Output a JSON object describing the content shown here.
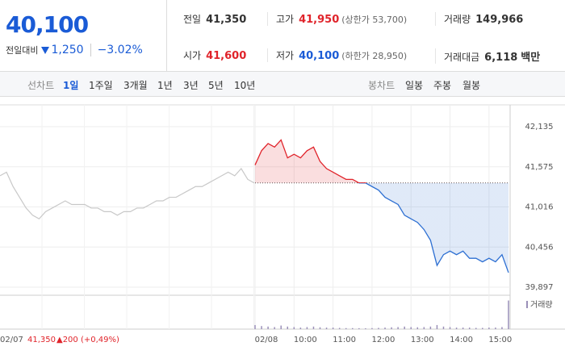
{
  "header": {
    "price": "40,100",
    "change_label": "전일대비",
    "change": "1,250",
    "change_pct": "−3.02%"
  },
  "stats": [
    {
      "label": "전일",
      "value": "41,350"
    },
    {
      "label": "고가",
      "value": "41,950",
      "note": "(상한가 53,700)"
    },
    {
      "label": "거래량",
      "value": "149,966"
    },
    {
      "label": "시가",
      "value": "41,600"
    },
    {
      "label": "저가",
      "value": "40,100",
      "note": "(하한가 28,950)"
    },
    {
      "label": "거래대금",
      "value": "6,118",
      "unit": "백만"
    }
  ],
  "tabs": {
    "line_label": "선차트",
    "periods": [
      "1일",
      "1주일",
      "3개월",
      "1년",
      "3년",
      "5년",
      "10년"
    ],
    "candle_label": "봉차트",
    "candles": [
      "일봉",
      "주봉",
      "월봉"
    ]
  },
  "chart_data": {
    "type": "line",
    "categories": [
      "09:00",
      "09:10",
      "09:20",
      "09:30",
      "09:40",
      "09:50",
      "10:00",
      "10:10",
      "10:20",
      "10:30",
      "10:40",
      "10:50",
      "11:00",
      "11:10",
      "11:20",
      "11:30",
      "11:40",
      "11:50",
      "12:00",
      "12:10",
      "12:20",
      "12:30",
      "12:40",
      "12:50",
      "13:00",
      "13:10",
      "13:20",
      "13:30",
      "13:40",
      "13:50",
      "14:00",
      "14:10",
      "14:20",
      "14:30",
      "14:40",
      "14:50",
      "15:00",
      "15:10",
      "15:20",
      "15:30"
    ],
    "series": [
      {
        "color_up": "#e0232a",
        "color_down": "#2d6fd2",
        "values": [
          41600,
          41800,
          41900,
          41850,
          41950,
          41700,
          41750,
          41700,
          41800,
          41850,
          41650,
          41550,
          41500,
          41450,
          41400,
          41400,
          41350,
          41350,
          41300,
          41250,
          41150,
          41100,
          41050,
          40900,
          40850,
          40800,
          40700,
          40550,
          40200,
          40350,
          40400,
          40350,
          40400,
          40300,
          40300,
          40250,
          40300,
          40250,
          40350,
          40100
        ]
      }
    ],
    "previous": {
      "color": "#c8c8c8",
      "values": [
        41450,
        41500,
        41300,
        41150,
        41000,
        40900,
        40850,
        40950,
        41000,
        41050,
        41100,
        41050,
        41050,
        41050,
        41000,
        41000,
        40950,
        40950,
        40900,
        40950,
        40950,
        41000,
        41000,
        41050,
        41100,
        41100,
        41150,
        41150,
        41200,
        41250,
        41300,
        41300,
        41350,
        41400,
        41450,
        41500,
        41450,
        41550,
        41400,
        41350
      ]
    },
    "baseline": 41350,
    "ylim": [
      39897,
      42135
    ],
    "yticks": [
      {
        "value": 42135,
        "label": "42,135"
      },
      {
        "value": 41575,
        "label": "41,575"
      },
      {
        "value": 41016,
        "label": "41,016"
      },
      {
        "value": 40456,
        "label": "40,456"
      },
      {
        "value": 39897,
        "label": "39,897"
      }
    ],
    "xticks": [
      {
        "value": "09:00",
        "label": "02/08"
      },
      "10:00",
      "11:00",
      "12:00",
      "13:00",
      "14:00",
      "15:00"
    ],
    "grid": true,
    "volume": {
      "name": "거래량",
      "color": "#9a8fb8",
      "ylim": [
        0,
        30000
      ],
      "values": [
        4000,
        3000,
        2500,
        2000,
        3500,
        2500,
        2000,
        1500,
        2000,
        2500,
        1800,
        1500,
        1500,
        1200,
        1000,
        1000,
        900,
        800,
        1000,
        1200,
        1500,
        1800,
        2000,
        2500,
        2000,
        1800,
        2000,
        2500,
        4000,
        2500,
        2000,
        1500,
        1500,
        1500,
        1200,
        1200,
        1500,
        1500,
        2000,
        28000
      ]
    },
    "footer": {
      "date": "02/07",
      "close": "41,350",
      "change": "▲200 (+0,49%)"
    }
  }
}
